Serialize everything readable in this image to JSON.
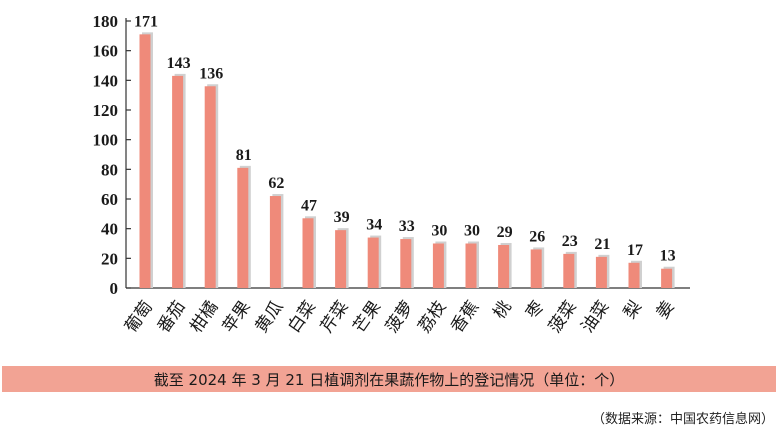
{
  "chart_data": {
    "type": "bar",
    "categories": [
      "葡萄",
      "番茄",
      "柑橘",
      "苹果",
      "黄瓜",
      "白菜",
      "芹菜",
      "芒果",
      "菠萝",
      "荔枝",
      "香蕉",
      "桃",
      "枣",
      "菠菜",
      "油菜",
      "梨",
      "姜"
    ],
    "values": [
      171,
      143,
      136,
      81,
      62,
      47,
      39,
      34,
      33,
      30,
      30,
      29,
      26,
      23,
      21,
      17,
      13
    ],
    "title": "截至 2024 年 3 月 21 日植调剂在果蔬作物上的登记情况（单位：个）",
    "xlabel": "",
    "ylabel": "",
    "ylim": [
      0,
      180
    ],
    "yticks": [
      0,
      20,
      40,
      60,
      80,
      100,
      120,
      140,
      160,
      180
    ],
    "grid": false,
    "colors": {
      "bar": "#ef8a7a",
      "bar_shadow": "#d0d0d0",
      "caption_band": "#f2a394"
    }
  },
  "source": "（数据来源：中国农药信息网）"
}
